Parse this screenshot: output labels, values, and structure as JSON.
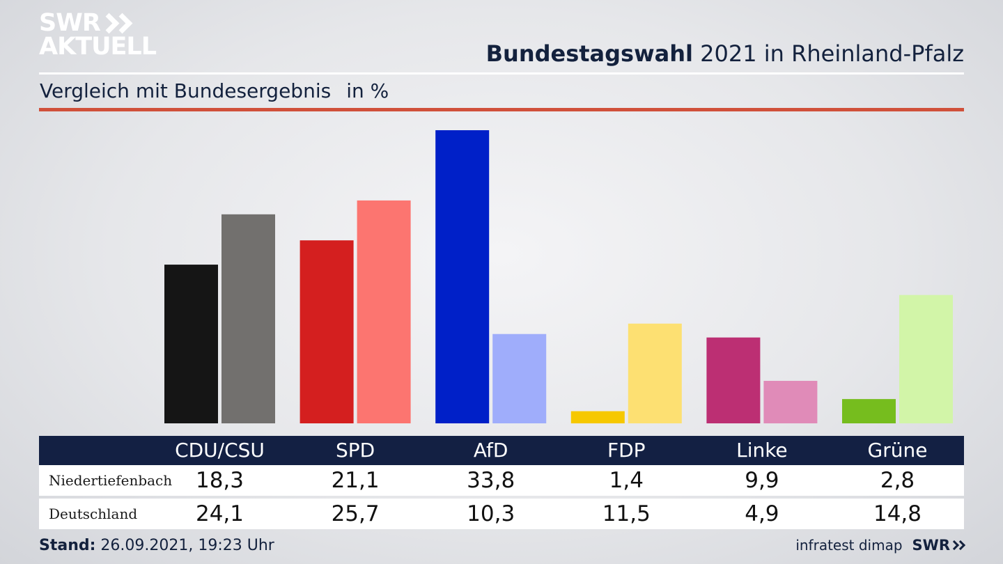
{
  "branding": {
    "logo_line1": "SWR",
    "logo_line2": "AKTUELL",
    "footer_source": "infratest dimap",
    "footer_logo": "SWR"
  },
  "header": {
    "title_bold": "Bundestagswahl",
    "title_rest": " 2021 in Rheinland-Pfalz",
    "subtitle": "Vergleich mit Bundesergebnis",
    "unit": "in %"
  },
  "footer": {
    "stand_label": "Stand:",
    "stand_value": " 26.09.2021, 19:23 Uhr"
  },
  "table": {
    "headers": [
      "CDU/CSU",
      "SPD",
      "AfD",
      "FDP",
      "Linke",
      "Grüne"
    ],
    "rows": [
      {
        "label": "Niedertiefenbach",
        "values": [
          "18,3",
          "21,1",
          "33,8",
          "1,4",
          "9,9",
          "2,8"
        ]
      },
      {
        "label": "Deutschland",
        "values": [
          "24,1",
          "25,7",
          "10,3",
          "11,5",
          "4,9",
          "14,8"
        ]
      }
    ]
  },
  "chart_data": {
    "type": "bar",
    "categories": [
      "CDU/CSU",
      "SPD",
      "AfD",
      "FDP",
      "Linke",
      "Grüne"
    ],
    "series": [
      {
        "name": "Niedertiefenbach",
        "values": [
          18.3,
          21.1,
          33.8,
          1.4,
          9.9,
          2.8
        ],
        "colors": [
          "#151515",
          "#d41f1f",
          "#0020c8",
          "#f6c800",
          "#bc2f73",
          "#76bd1e"
        ]
      },
      {
        "name": "Deutschland",
        "values": [
          24.1,
          25.7,
          10.3,
          11.5,
          4.9,
          14.8
        ],
        "colors": [
          "#72706e",
          "#fc7570",
          "#9fadfb",
          "#fde072",
          "#e08bb8",
          "#d2f5a8"
        ]
      }
    ],
    "title": "Bundestagswahl 2021 in Rheinland-Pfalz",
    "subtitle": "Vergleich mit Bundesergebnis",
    "ylabel": "in %",
    "ylim": [
      0,
      33.8
    ]
  }
}
